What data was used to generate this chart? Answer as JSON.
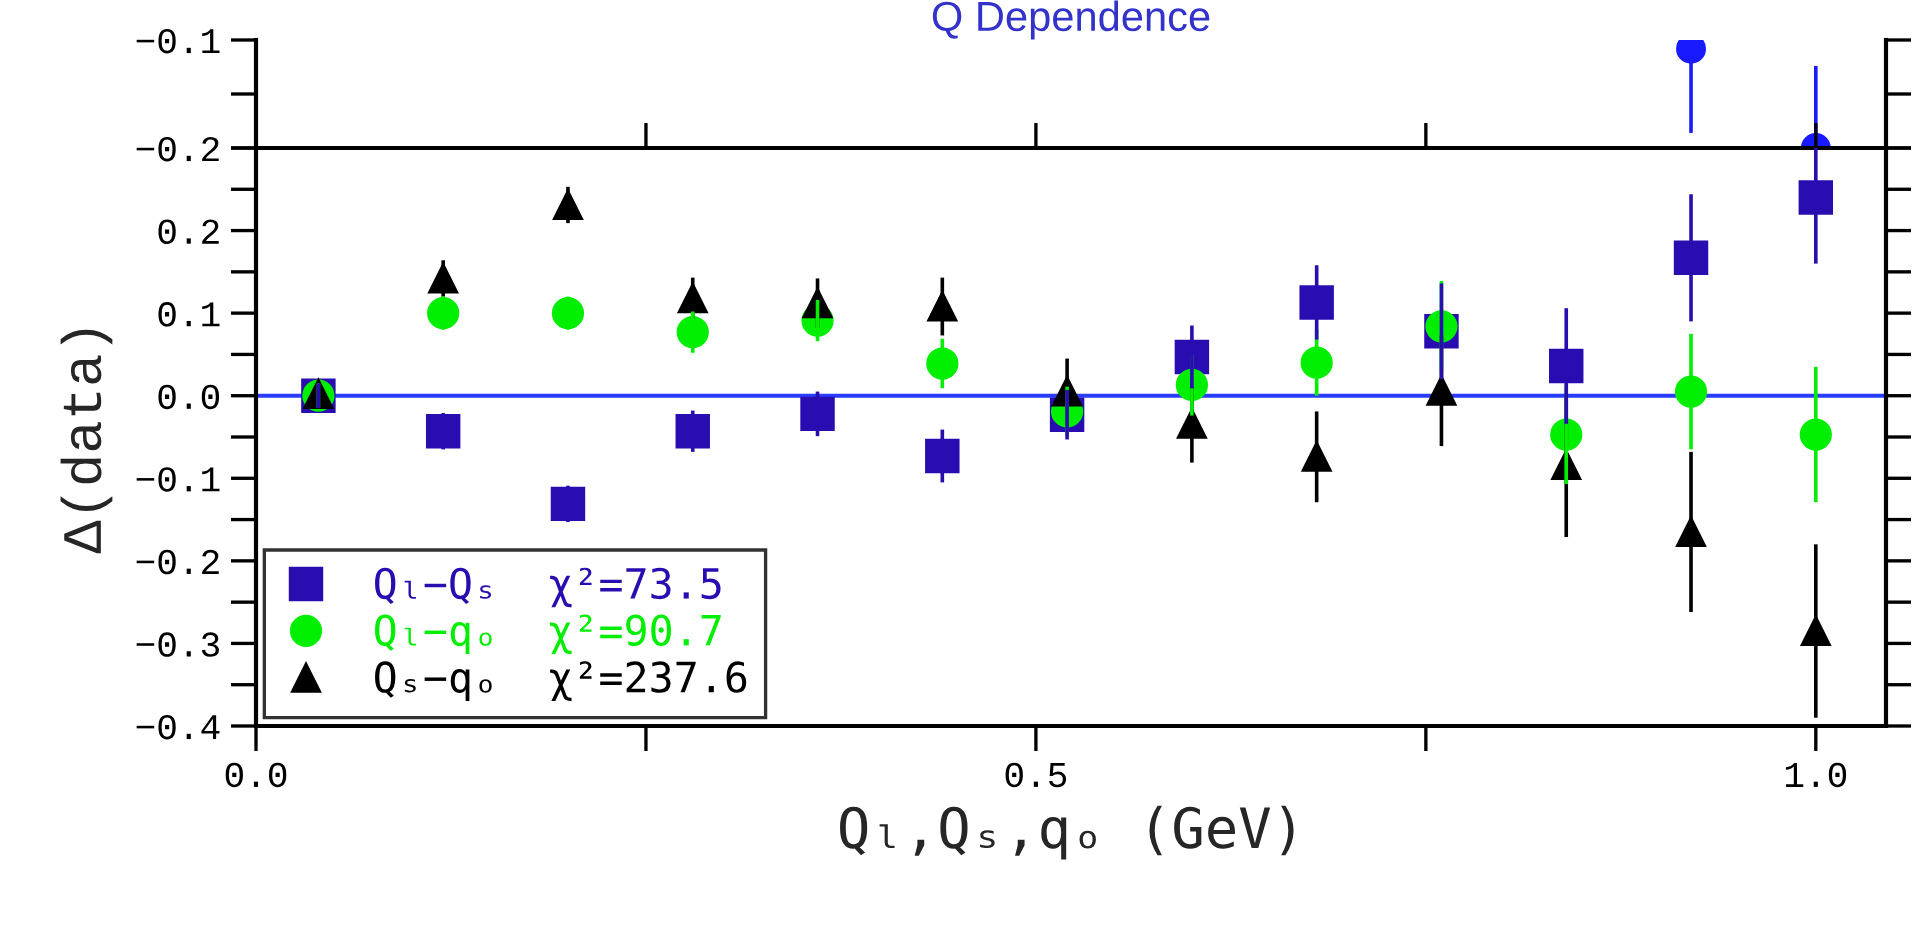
{
  "chart_data": [
    {
      "type": "scatter",
      "title": "Q Dependence",
      "tick_labels": "y",
      "x": [
        0.92,
        1.0
      ],
      "xlim": [
        0.0,
        1.045
      ],
      "xticks": [
        {
          "value": 0.25,
          "label": null
        },
        {
          "value": 0.5,
          "label": null
        },
        {
          "value": 0.75,
          "label": null
        }
      ],
      "ylim": [
        -0.2,
        -0.1
      ],
      "yticks": [
        {
          "value": -0.2,
          "label": "−0.2"
        },
        {
          "value": -0.15,
          "label": null
        },
        {
          "value": -0.1,
          "label": "−0.1"
        }
      ],
      "series": [
        {
          "color": "#1a1aff",
          "marker": "circle",
          "values": [
            -0.108,
            -0.2
          ],
          "errors": [
            [
              -0.186,
              -0.1
            ],
            [
              -0.2,
              -0.124
            ]
          ]
        }
      ]
    },
    {
      "type": "scatter",
      "xlabel": "Qₗ,Qₛ,qₒ (GeV)",
      "ylabel": "Δ(data)",
      "legend": "bottom left",
      "x": [
        0.04,
        0.12,
        0.2,
        0.28,
        0.36,
        0.44,
        0.52,
        0.6,
        0.68,
        0.76,
        0.84,
        0.92,
        1.0
      ],
      "xlim": [
        0.0,
        1.045
      ],
      "xticks": [
        {
          "value": 0,
          "label": "0.0"
        },
        {
          "value": 0.25,
          "label": null
        },
        {
          "value": 0.5,
          "label": "0.5"
        },
        {
          "value": 0.75,
          "label": null
        },
        {
          "value": 1.0,
          "label": "1.0"
        }
      ],
      "ylim": [
        -0.4,
        0.3
      ],
      "yticks": [
        {
          "value": -0.4,
          "label": "−0.4"
        },
        {
          "value": -0.35,
          "label": null
        },
        {
          "value": -0.3,
          "label": "−0.3"
        },
        {
          "value": -0.25,
          "label": null
        },
        {
          "value": -0.2,
          "label": "−0.2"
        },
        {
          "value": -0.15,
          "label": null
        },
        {
          "value": -0.1,
          "label": "−0.1"
        },
        {
          "value": -0.05,
          "label": null
        },
        {
          "value": 0,
          "label": "0.0"
        },
        {
          "value": 0.05,
          "label": null
        },
        {
          "value": 0.1,
          "label": "0.1"
        },
        {
          "value": 0.15,
          "label": null
        },
        {
          "value": 0.2,
          "label": "0.2"
        },
        {
          "value": 0.25,
          "label": null
        },
        {
          "value": 0.3,
          "label": null
        }
      ],
      "ref_lines": [
        {
          "axis": "y",
          "value": 0,
          "label": null,
          "color": "#2a3cff"
        }
      ],
      "series": [
        {
          "name": "Qₗ−Qₛ  χ²=73.5",
          "color": "#2a0db0",
          "marker": "square",
          "values": [
            0,
            -0.043,
            -0.131,
            -0.043,
            -0.022,
            -0.073,
            -0.023,
            0.047,
            0.113,
            0.078,
            0.036,
            0.167,
            0.24
          ],
          "errors": [
            0.015,
            0.022,
            0.022,
            0.025,
            0.027,
            0.032,
            0.03,
            0.038,
            0.045,
            0.058,
            0.07,
            0.077,
            0.08
          ]
        },
        {
          "name": "Qₗ−qₒ  χ²=90.7",
          "color": "#00ee00",
          "marker": "circle",
          "values": [
            0,
            0.1,
            0.1,
            0.077,
            0.091,
            0.039,
            -0.019,
            0.013,
            0.04,
            0.084,
            -0.047,
            0.005,
            -0.047
          ],
          "errors": [
            0.015,
            0.02,
            0.02,
            0.025,
            0.025,
            0.03,
            0.03,
            0.037,
            0.04,
            0.055,
            0.06,
            0.07,
            0.082
          ]
        },
        {
          "name": "Qₛ−qₒ  χ²=237.6",
          "color": "#000000",
          "marker": "triangle",
          "values": [
            0.002,
            0.142,
            0.231,
            0.118,
            0.112,
            0.108,
            0.005,
            -0.034,
            -0.074,
            0.006,
            -0.084,
            -0.165,
            -0.285
          ],
          "errors": [
            0.015,
            0.022,
            0.022,
            0.025,
            0.03,
            0.035,
            0.04,
            0.047,
            0.055,
            0.067,
            0.087,
            0.097,
            0.105
          ]
        }
      ]
    }
  ]
}
